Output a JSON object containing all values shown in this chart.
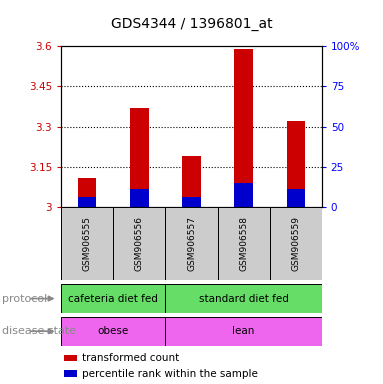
{
  "title": "GDS4344 / 1396801_at",
  "samples": [
    "GSM906555",
    "GSM906556",
    "GSM906557",
    "GSM906558",
    "GSM906559"
  ],
  "red_values": [
    3.11,
    3.37,
    3.19,
    3.59,
    3.32
  ],
  "blue_values": [
    3.04,
    3.07,
    3.04,
    3.09,
    3.07
  ],
  "ylim_left": [
    3.0,
    3.6
  ],
  "ylim_right": [
    0,
    100
  ],
  "yticks_left": [
    3.0,
    3.15,
    3.3,
    3.45,
    3.6
  ],
  "yticks_right": [
    0,
    25,
    50,
    75,
    100
  ],
  "ytick_labels_left": [
    "3",
    "3.15",
    "3.3",
    "3.45",
    "3.6"
  ],
  "ytick_labels_right": [
    "0",
    "25",
    "50",
    "75",
    "100%"
  ],
  "protocol_labels": [
    "cafeteria diet fed",
    "standard diet fed"
  ],
  "protocol_color": "#66dd66",
  "disease_labels": [
    "obese",
    "lean"
  ],
  "disease_color": "#ee66ee",
  "sample_bg_color": "#cccccc",
  "bar_width": 0.35,
  "red_color": "#cc0000",
  "blue_color": "#0000cc",
  "legend_red": "transformed count",
  "legend_blue": "percentile rank within the sample",
  "base_value": 3.0
}
